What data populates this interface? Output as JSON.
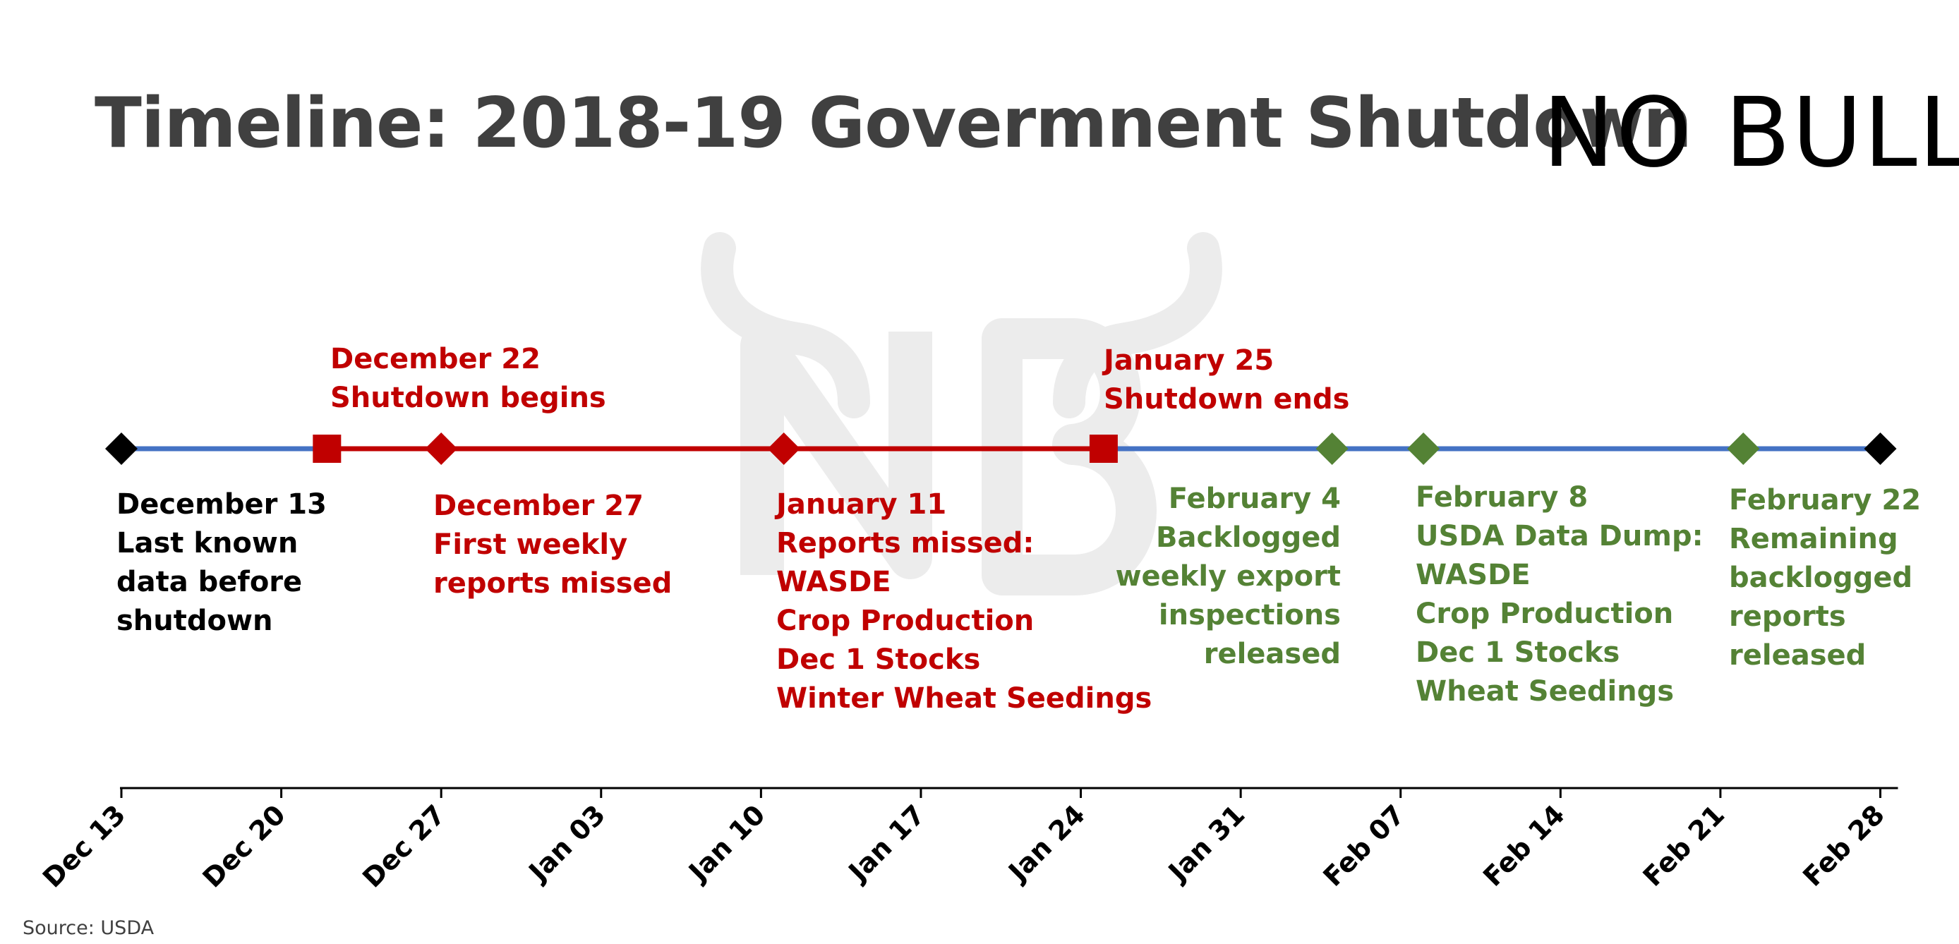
{
  "title": "Timeline: 2018-19 Govermnent Shutdown",
  "logo": {
    "text": "NOBULL"
  },
  "source": "Source: USDA",
  "colors": {
    "red": "#c00000",
    "green": "#548235",
    "blue": "#4472c4",
    "black": "#000000",
    "watermark": "#e9e9e9"
  },
  "chart_data": {
    "type": "timeline",
    "x_axis": {
      "ticks": [
        "Dec 13",
        "Dec 20",
        "Dec 27",
        "Jan 03",
        "Jan 10",
        "Jan 17",
        "Jan 24",
        "Jan 31",
        "Feb 07",
        "Feb 14",
        "Feb 21",
        "Feb 28"
      ],
      "range_days": [
        0,
        77
      ]
    },
    "segments": [
      {
        "from_day": 0,
        "to_day": 9,
        "color": "blue"
      },
      {
        "from_day": 9,
        "to_day": 43,
        "color": "red"
      },
      {
        "from_day": 43,
        "to_day": 77,
        "color": "blue"
      }
    ],
    "events": [
      {
        "day": 0,
        "marker": "diamond",
        "color": "black",
        "lines": [
          "December 13",
          "Last known",
          "data before",
          "shutdown"
        ]
      },
      {
        "day": 9,
        "marker": "square",
        "color": "red",
        "lines": [
          "December 22",
          "Shutdown begins"
        ]
      },
      {
        "day": 14,
        "marker": "diamond",
        "color": "red",
        "lines": [
          "December 27",
          "First weekly",
          "reports missed"
        ]
      },
      {
        "day": 29,
        "marker": "diamond",
        "color": "red",
        "lines": [
          "January 11",
          "Reports missed:",
          "WASDE",
          "Crop Production",
          "Dec 1 Stocks",
          "Winter Wheat Seedings"
        ]
      },
      {
        "day": 43,
        "marker": "square",
        "color": "red",
        "lines": [
          "January 25",
          "Shutdown ends"
        ]
      },
      {
        "day": 53,
        "marker": "diamond",
        "color": "green",
        "lines": [
          "February 4",
          "Backlogged",
          "weekly export",
          "inspections",
          "released"
        ]
      },
      {
        "day": 57,
        "marker": "diamond",
        "color": "green",
        "lines": [
          "February 8",
          "USDA Data Dump:",
          "WASDE",
          "Crop Production",
          "Dec 1 Stocks",
          "Wheat Seedings"
        ]
      },
      {
        "day": 71,
        "marker": "diamond",
        "color": "green",
        "lines": [
          "February 22",
          "Remaining",
          "backlogged",
          "reports",
          "released"
        ]
      },
      {
        "day": 77,
        "marker": "diamond",
        "color": "black",
        "lines": []
      }
    ]
  }
}
